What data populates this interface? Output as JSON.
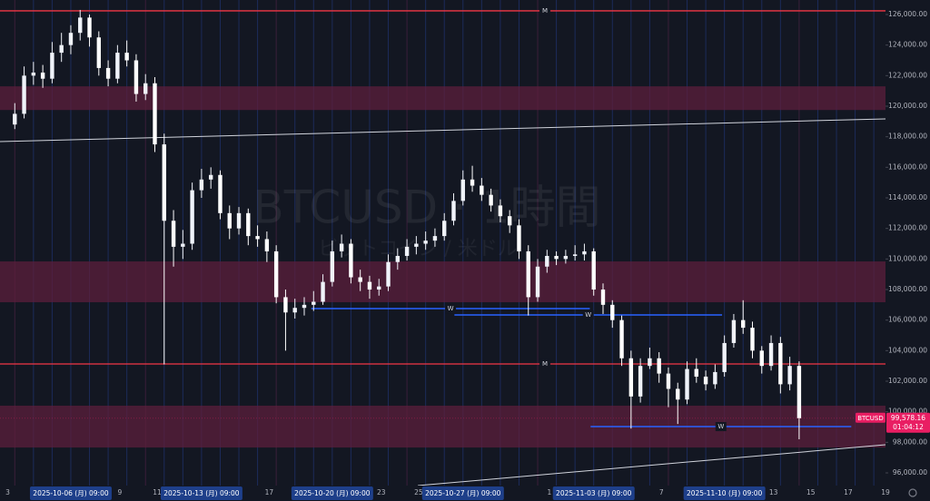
{
  "chart_data": {
    "type": "candlestick",
    "title": "BTCUSD · 1時間",
    "subtitle": "ビットコイン / 米ドル",
    "up_color": "#f0f3fa",
    "down_color": "#ffffff",
    "x": [
      "2025-10-03T09:00",
      "2025-10-03T21:00",
      "2025-10-04T09:00",
      "2025-10-04T21:00",
      "2025-10-05T09:00",
      "2025-10-05T21:00",
      "2025-10-06T09:00",
      "2025-10-06T21:00",
      "2025-10-07T09:00",
      "2025-10-07T21:00",
      "2025-10-08T09:00",
      "2025-10-08T21:00",
      "2025-10-09T09:00",
      "2025-10-09T21:00",
      "2025-10-10T09:00",
      "2025-10-10T21:00",
      "2025-10-11T09:00",
      "2025-10-11T21:00",
      "2025-10-12T09:00",
      "2025-10-12T21:00",
      "2025-10-13T09:00",
      "2025-10-13T21:00",
      "2025-10-14T09:00",
      "2025-10-14T21:00",
      "2025-10-15T09:00",
      "2025-10-15T21:00",
      "2025-10-16T09:00",
      "2025-10-16T21:00",
      "2025-10-17T09:00",
      "2025-10-17T21:00",
      "2025-10-18T09:00",
      "2025-10-18T21:00",
      "2025-10-19T09:00",
      "2025-10-19T21:00",
      "2025-10-20T09:00",
      "2025-10-20T21:00",
      "2025-10-21T09:00",
      "2025-10-21T21:00",
      "2025-10-22T09:00",
      "2025-10-22T21:00",
      "2025-10-23T09:00",
      "2025-10-23T21:00",
      "2025-10-24T09:00",
      "2025-10-24T21:00",
      "2025-10-25T09:00",
      "2025-10-25T21:00",
      "2025-10-26T09:00",
      "2025-10-26T21:00",
      "2025-10-27T09:00",
      "2025-10-27T21:00",
      "2025-10-28T09:00",
      "2025-10-28T21:00",
      "2025-10-29T09:00",
      "2025-10-29T21:00",
      "2025-10-30T09:00",
      "2025-10-30T21:00",
      "2025-10-31T09:00",
      "2025-10-31T21:00",
      "2025-11-01T09:00",
      "2025-11-01T21:00",
      "2025-11-02T09:00",
      "2025-11-02T21:00",
      "2025-11-03T09:00",
      "2025-11-03T21:00",
      "2025-11-04T09:00",
      "2025-11-04T21:00",
      "2025-11-05T09:00",
      "2025-11-05T21:00",
      "2025-11-06T09:00",
      "2025-11-06T21:00",
      "2025-11-07T09:00",
      "2025-11-07T21:00",
      "2025-11-08T09:00",
      "2025-11-08T21:00",
      "2025-11-09T09:00",
      "2025-11-09T21:00",
      "2025-11-10T09:00",
      "2025-11-10T21:00",
      "2025-11-11T09:00",
      "2025-11-11T21:00",
      "2025-11-12T09:00",
      "2025-11-12T21:00",
      "2025-11-13T09:00",
      "2025-11-13T21:00",
      "2025-11-14T09:00"
    ],
    "open": [
      118800,
      119500,
      122000,
      122200,
      121800,
      123500,
      124000,
      124800,
      125800,
      124500,
      122500,
      121800,
      123500,
      123000,
      120800,
      121500,
      117500,
      112500,
      110800,
      111000,
      114500,
      115200,
      115500,
      113000,
      112000,
      113000,
      111500,
      111300,
      110500,
      107500,
      106500,
      106800,
      107000,
      107200,
      108500,
      110500,
      111000,
      108800,
      108500,
      108000,
      108200,
      109800,
      110200,
      110800,
      111000,
      111200,
      111500,
      112500,
      113800,
      115200,
      114800,
      114200,
      113500,
      112800,
      112200,
      110500,
      107500,
      109500,
      110200,
      110000,
      110200,
      110300,
      110500,
      108000,
      107000,
      106000,
      103500,
      101000,
      103000,
      103500,
      102500,
      101500,
      100800,
      102800,
      102300,
      101800,
      102600,
      104500,
      106000,
      105500,
      104000,
      103000,
      104500,
      101800,
      103000
    ],
    "high": [
      120200,
      122600,
      122900,
      122700,
      124200,
      124800,
      125300,
      126300,
      126000,
      124900,
      123000,
      124000,
      124300,
      123400,
      122100,
      121900,
      118200,
      113200,
      111900,
      115000,
      115900,
      116000,
      115800,
      113500,
      113400,
      113300,
      112200,
      111800,
      110900,
      108000,
      107400,
      107500,
      107900,
      109000,
      111200,
      111600,
      111300,
      109300,
      108900,
      108700,
      110300,
      110700,
      111300,
      111500,
      111800,
      112000,
      113000,
      114300,
      115800,
      116100,
      115300,
      114600,
      113900,
      113200,
      112600,
      110900,
      110000,
      110600,
      110500,
      110600,
      110900,
      111000,
      110700,
      108400,
      107300,
      106300,
      104000,
      103500,
      104200,
      103900,
      102900,
      101900,
      103300,
      103500,
      102700,
      103100,
      105000,
      106400,
      107300,
      105900,
      104300,
      105000,
      104900,
      103600,
      103300
    ],
    "low": [
      118500,
      119200,
      121400,
      121200,
      121500,
      122900,
      123400,
      124300,
      123900,
      122000,
      121300,
      121500,
      122600,
      120300,
      120400,
      117000,
      103100,
      109500,
      110000,
      110600,
      114000,
      114600,
      112600,
      111300,
      111600,
      110900,
      110800,
      109800,
      107100,
      104000,
      106100,
      106300,
      106600,
      107000,
      108200,
      110100,
      108400,
      107900,
      107400,
      107600,
      107900,
      109300,
      109900,
      110300,
      110600,
      110800,
      111200,
      112200,
      113500,
      114400,
      113800,
      113100,
      112400,
      111700,
      110000,
      106300,
      107200,
      109100,
      109600,
      109700,
      109900,
      109900,
      107600,
      106400,
      105500,
      103000,
      98900,
      100600,
      102800,
      101900,
      100300,
      99200,
      100500,
      101900,
      101400,
      101500,
      102300,
      104200,
      105100,
      103500,
      102500,
      102700,
      101200,
      101400,
      98200
    ],
    "close": [
      119500,
      122000,
      122200,
      121800,
      123500,
      124000,
      124800,
      125800,
      124500,
      122500,
      121800,
      123500,
      123000,
      120800,
      121500,
      117500,
      112500,
      110800,
      111000,
      114500,
      115200,
      115500,
      113000,
      112000,
      113000,
      111500,
      111300,
      110500,
      107500,
      106500,
      106800,
      107000,
      107200,
      108500,
      110500,
      111000,
      108800,
      108500,
      108000,
      108200,
      109800,
      110200,
      110800,
      111000,
      111200,
      111500,
      112500,
      113800,
      115200,
      114800,
      114200,
      113500,
      112800,
      112200,
      110500,
      107500,
      109500,
      110200,
      110000,
      110200,
      110300,
      110500,
      108000,
      107000,
      106000,
      103500,
      101000,
      103000,
      103500,
      102500,
      101500,
      100800,
      102800,
      102300,
      101800,
      102600,
      104500,
      106000,
      105500,
      104000,
      103000,
      104500,
      101800,
      103000,
      99578.16
    ],
    "xlim": [
      "2025-10-02T14:00",
      "2025-11-19T00:00"
    ],
    "xticks": [
      {
        "value": "2025-10-03T00:00",
        "label": "3"
      },
      {
        "value": "2025-10-09T00:00",
        "label": "9"
      },
      {
        "value": "2025-10-11T00:00",
        "label": "11"
      },
      {
        "value": "2025-10-17T00:00",
        "label": "17"
      },
      {
        "value": "2025-10-23T00:00",
        "label": "23"
      },
      {
        "value": "2025-10-25T00:00",
        "label": "25"
      },
      {
        "value": "2025-11-01T00:00",
        "label": "1"
      },
      {
        "value": "2025-11-07T00:00",
        "label": "7"
      },
      {
        "value": "2025-11-13T00:00",
        "label": "13"
      },
      {
        "value": "2025-11-15T00:00",
        "label": "15"
      },
      {
        "value": "2025-11-17T00:00",
        "label": "17"
      },
      {
        "value": "2025-11-19T00:00",
        "label": "19"
      }
    ],
    "highlight_xticks": [
      {
        "value": "2025-10-06T09:00",
        "label": "2025-10-06 (月)   09:00"
      },
      {
        "value": "2025-10-13T09:00",
        "label": "2025-10-13 (月)   09:00"
      },
      {
        "value": "2025-10-20T09:00",
        "label": "2025-10-20 (月)   09:00"
      },
      {
        "value": "2025-10-27T09:00",
        "label": "2025-10-27 (月)   09:00"
      },
      {
        "value": "2025-11-03T09:00",
        "label": "2025-11-03 (月)   09:00"
      },
      {
        "value": "2025-11-10T09:00",
        "label": "2025-11-10 (月)   09:00"
      }
    ],
    "ylim": [
      95170,
      126950
    ],
    "yticks": [
      {
        "value": 96000,
        "label": "96,000.00"
      },
      {
        "value": 98000,
        "label": "98,000.00"
      },
      {
        "value": 100000,
        "label": "100,000.00"
      },
      {
        "value": 102000,
        "label": "102,000.00"
      },
      {
        "value": 104000,
        "label": "104,000.00"
      },
      {
        "value": 106000,
        "label": "106,000.00"
      },
      {
        "value": 108000,
        "label": "108,000.00"
      },
      {
        "value": 110000,
        "label": "110,000.00"
      },
      {
        "value": 112000,
        "label": "112,000.00"
      },
      {
        "value": 114000,
        "label": "114,000.00"
      },
      {
        "value": 116000,
        "label": "116,000.00"
      },
      {
        "value": 118000,
        "label": "118,000.00"
      },
      {
        "value": 120000,
        "label": "120,000.00"
      },
      {
        "value": 122000,
        "label": "122,000.00"
      },
      {
        "value": 124000,
        "label": "124,000.00"
      },
      {
        "value": 126000,
        "label": "126,000.00"
      }
    ],
    "zones": [
      {
        "from": 119750,
        "to": 121300,
        "color": "#5c1f3c"
      },
      {
        "from": 107170,
        "to": 109840,
        "color": "#5c1f3c"
      },
      {
        "from": 97660,
        "to": 100400,
        "color": "#5c1f3c"
      }
    ],
    "levels": [
      {
        "value": 126240,
        "label": "M",
        "color": "#f23645"
      },
      {
        "value": 103130,
        "label": "M",
        "color": "#f23645"
      }
    ],
    "segments": [
      {
        "value": 106750,
        "start": "2025-10-19T06:00",
        "end": "2025-11-03T04:00",
        "label": "W",
        "color": "#2962ff"
      },
      {
        "value": 106335,
        "start": "2025-10-26T22:00",
        "end": "2025-11-10T06:00",
        "label": "W",
        "color": "#2962ff"
      },
      {
        "value": 99030,
        "start": "2025-11-03T05:00",
        "end": "2025-11-17T04:00",
        "label": "W",
        "color": "#2962ff"
      }
    ],
    "trendlines": [
      {
        "x": [
          "2025-10-02T14:00",
          "2025-11-19T00:00"
        ],
        "y": [
          117680,
          119170
        ],
        "color": "#d1d4dc"
      },
      {
        "x": [
          "2025-10-24T23:00",
          "2025-11-19T00:00"
        ],
        "y": [
          95170,
          97840
        ],
        "color": "#d1d4dc"
      }
    ],
    "price_tag": {
      "name": "BTCUSD",
      "value": 99578.16,
      "label": "99,578.16",
      "countdown": "01:04:12",
      "color": "#e91e63"
    }
  }
}
